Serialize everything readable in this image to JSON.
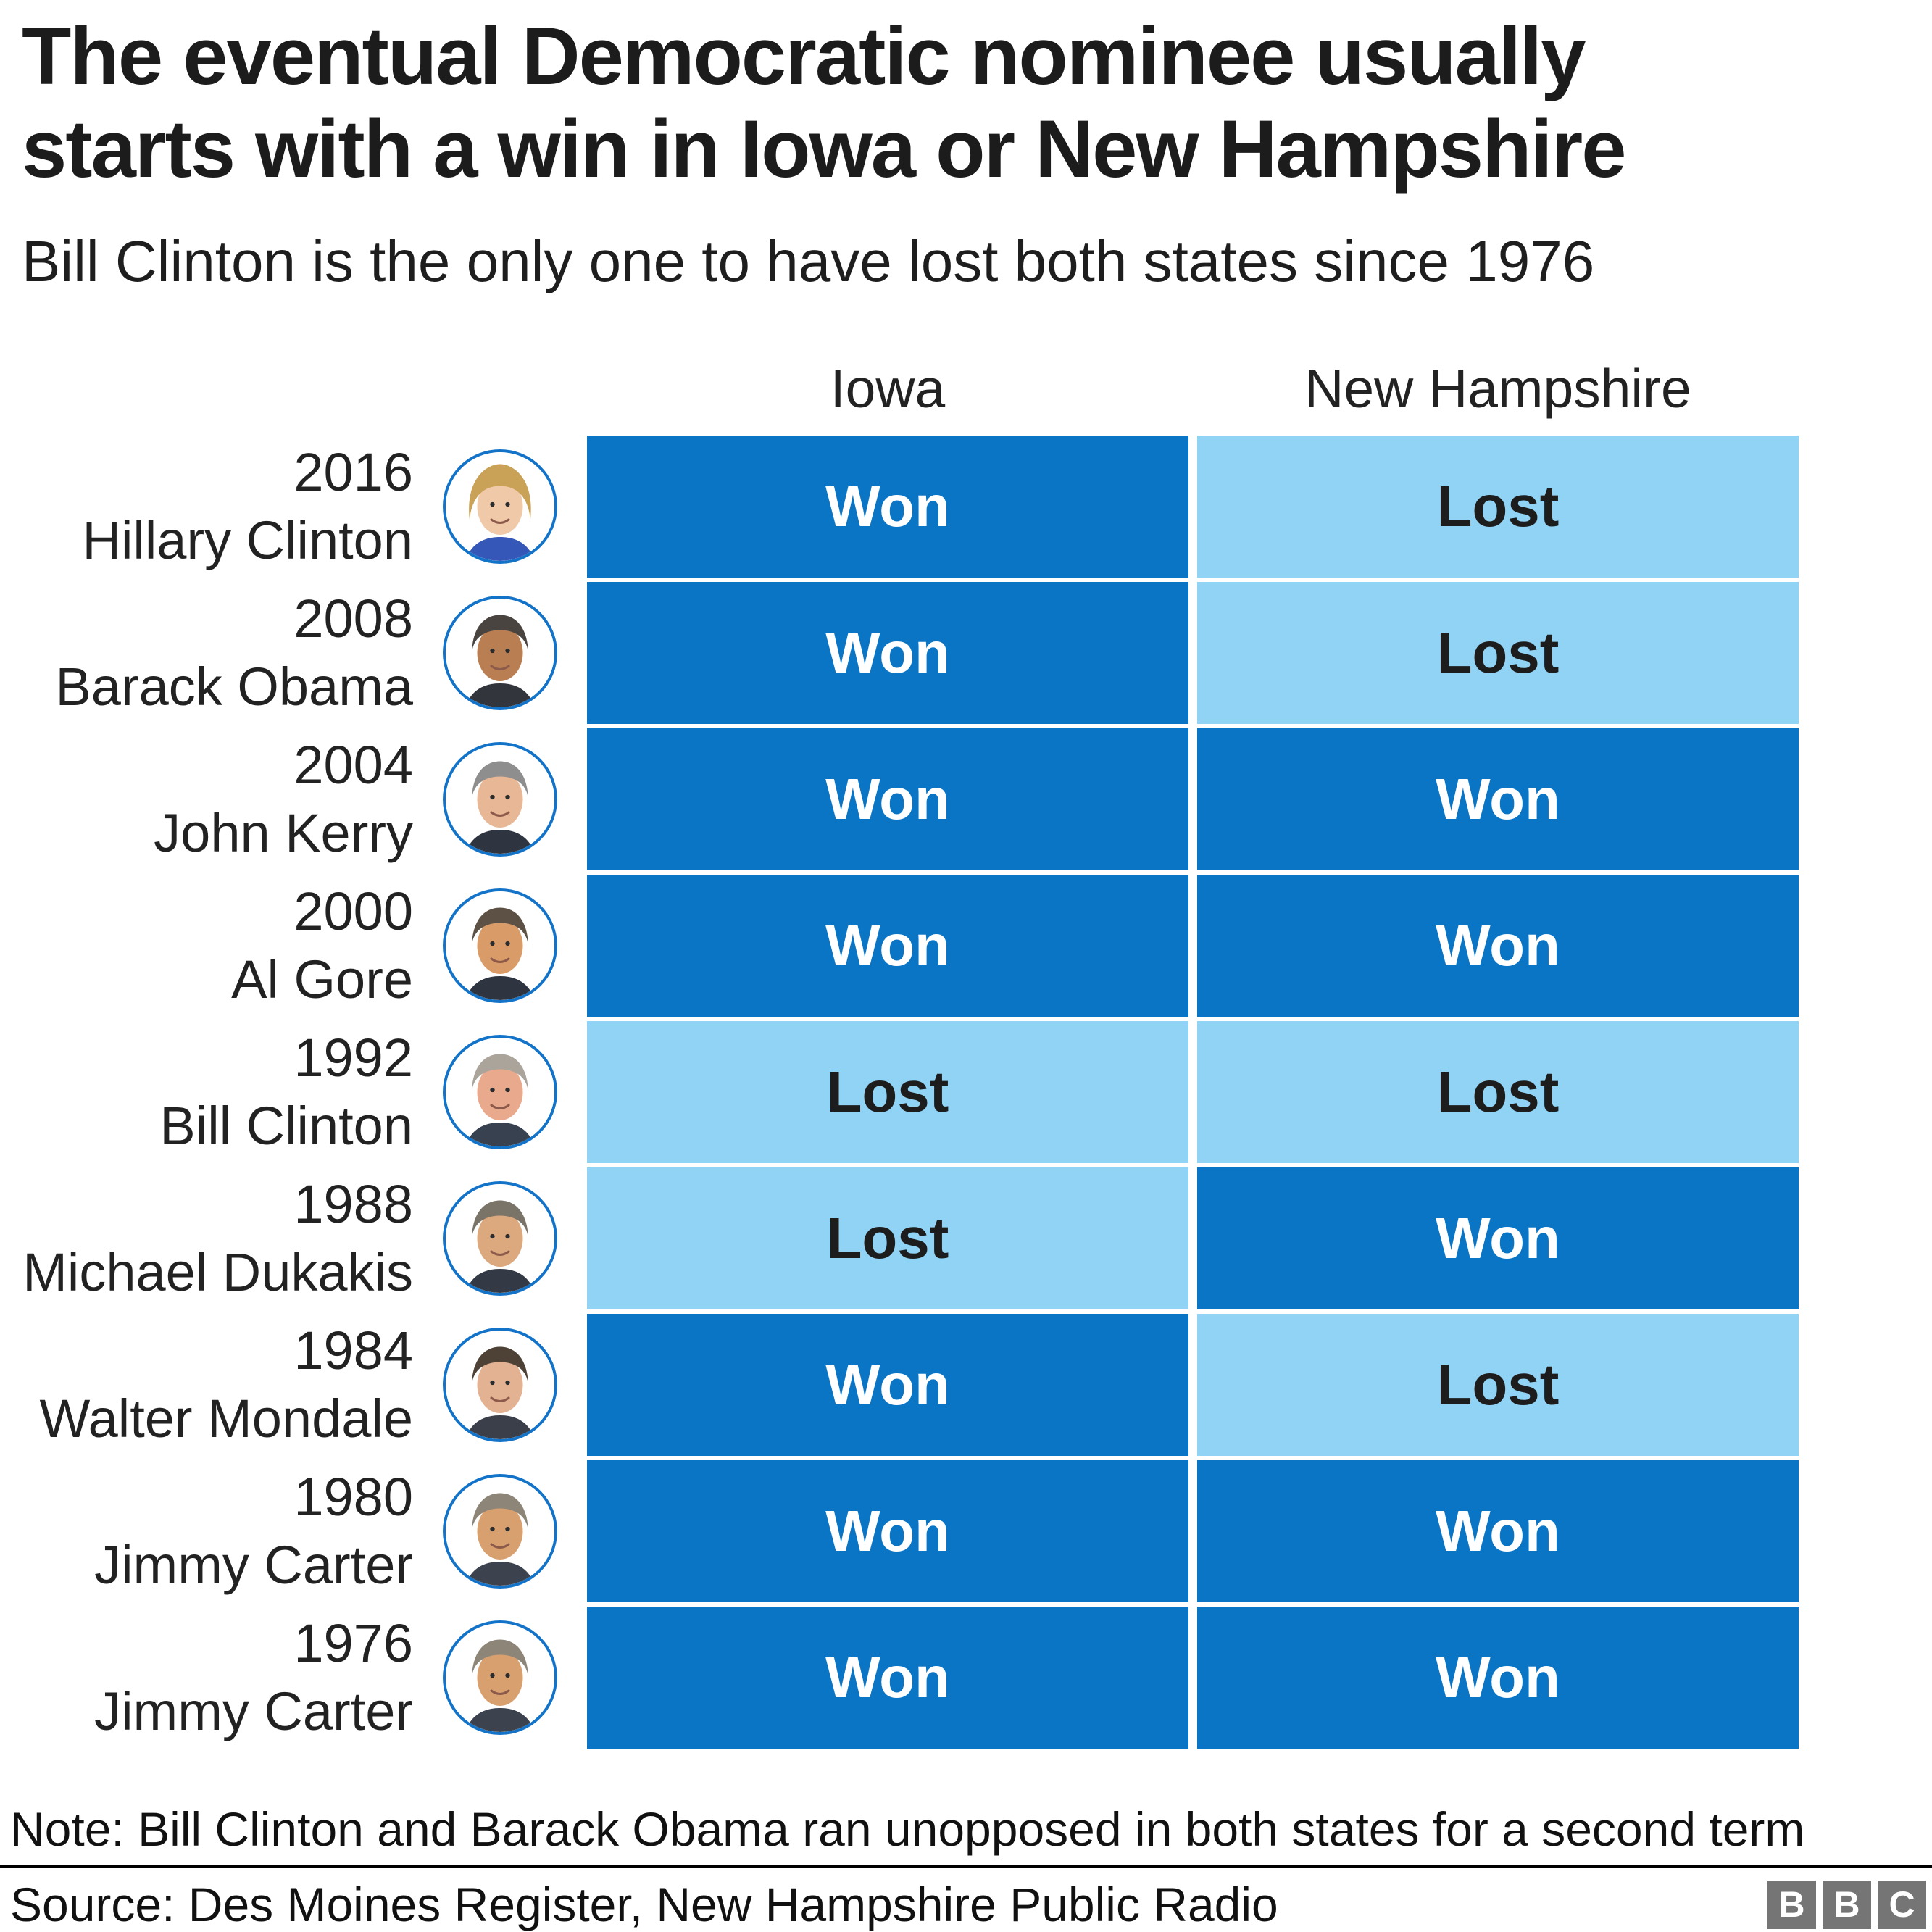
{
  "colors": {
    "won_bg": "#0a74c5",
    "lost_bg": "#90d3f5",
    "won_text": "#ffffff",
    "lost_text": "#1d1d1d",
    "avatar_ring": "#1373c8",
    "bbc_gray": "#757575"
  },
  "header": {
    "title_line1": "The eventual Democratic nominee usually",
    "title_line2": "starts with a win in Iowa or New Hampshire",
    "subtitle": "Bill Clinton is the only one to have lost both states since 1976"
  },
  "table": {
    "columns": [
      "Iowa",
      "New Hampshire"
    ],
    "rows": [
      {
        "year": "2016",
        "name": "Hillary Clinton",
        "iowa": "Won",
        "nh": "Lost",
        "avatar": {
          "style": "long",
          "hair": "#c9a157",
          "skin": "#f0c9a8",
          "suit": "#3558b8"
        }
      },
      {
        "year": "2008",
        "name": "Barack Obama",
        "iowa": "Won",
        "nh": "Lost",
        "avatar": {
          "style": "short",
          "hair": "#4a4440",
          "skin": "#b97f52",
          "suit": "#33353c"
        }
      },
      {
        "year": "2004",
        "name": "John Kerry",
        "iowa": "Won",
        "nh": "Won",
        "avatar": {
          "style": "short",
          "hair": "#8e8e8e",
          "skin": "#e8b795",
          "suit": "#2e3440"
        }
      },
      {
        "year": "2000",
        "name": "Al Gore",
        "iowa": "Won",
        "nh": "Won",
        "avatar": {
          "style": "short",
          "hair": "#5d5145",
          "skin": "#d99c68",
          "suit": "#2e3440"
        }
      },
      {
        "year": "1992",
        "name": "Bill Clinton",
        "iowa": "Lost",
        "nh": "Lost",
        "avatar": {
          "style": "short",
          "hair": "#aaa49a",
          "skin": "#e8a98c",
          "suit": "#384150"
        }
      },
      {
        "year": "1988",
        "name": "Michael Dukakis",
        "iowa": "Lost",
        "nh": "Won",
        "avatar": {
          "style": "short",
          "hair": "#7a7468",
          "skin": "#dca87e",
          "suit": "#333a45"
        }
      },
      {
        "year": "1984",
        "name": "Walter Mondale",
        "iowa": "Won",
        "nh": "Lost",
        "avatar": {
          "style": "short",
          "hair": "#4e4236",
          "skin": "#e3b293",
          "suit": "#3a3f4a"
        }
      },
      {
        "year": "1980",
        "name": "Jimmy Carter",
        "iowa": "Won",
        "nh": "Won",
        "avatar": {
          "style": "short",
          "hair": "#8d8678",
          "skin": "#d8a06f",
          "suit": "#3c424e"
        }
      },
      {
        "year": "1976",
        "name": "Jimmy Carter",
        "iowa": "Won",
        "nh": "Won",
        "avatar": {
          "style": "short",
          "hair": "#8d8678",
          "skin": "#d8a06f",
          "suit": "#3c424e"
        }
      }
    ]
  },
  "footer": {
    "note": "Note: Bill Clinton and Barack Obama ran unopposed in both states for a second term",
    "source": "Source: Des Moines Register, New Hampshire Public Radio",
    "logo": [
      "B",
      "B",
      "C"
    ]
  },
  "chart_data": {
    "type": "table",
    "title": "The eventual Democratic nominee usually starts with a win in Iowa or New Hampshire",
    "subtitle": "Bill Clinton is the only one to have lost both states since 1976",
    "columns": [
      "Iowa",
      "New Hampshire"
    ],
    "rows": [
      {
        "year": 2016,
        "nominee": "Hillary Clinton",
        "iowa": "Won",
        "new_hampshire": "Lost"
      },
      {
        "year": 2008,
        "nominee": "Barack Obama",
        "iowa": "Won",
        "new_hampshire": "Lost"
      },
      {
        "year": 2004,
        "nominee": "John Kerry",
        "iowa": "Won",
        "new_hampshire": "Won"
      },
      {
        "year": 2000,
        "nominee": "Al Gore",
        "iowa": "Won",
        "new_hampshire": "Won"
      },
      {
        "year": 1992,
        "nominee": "Bill Clinton",
        "iowa": "Lost",
        "new_hampshire": "Lost"
      },
      {
        "year": 1988,
        "nominee": "Michael Dukakis",
        "iowa": "Lost",
        "new_hampshire": "Won"
      },
      {
        "year": 1984,
        "nominee": "Walter Mondale",
        "iowa": "Won",
        "new_hampshire": "Lost"
      },
      {
        "year": 1980,
        "nominee": "Jimmy Carter",
        "iowa": "Won",
        "new_hampshire": "Won"
      },
      {
        "year": 1976,
        "nominee": "Jimmy Carter",
        "iowa": "Won",
        "new_hampshire": "Won"
      }
    ],
    "legend": {
      "dark_blue": "Won",
      "light_blue": "Lost"
    },
    "note": "Note: Bill Clinton and Barack Obama ran unopposed in both states for a second term",
    "source": "Source: Des Moines Register, New Hampshire Public Radio"
  }
}
